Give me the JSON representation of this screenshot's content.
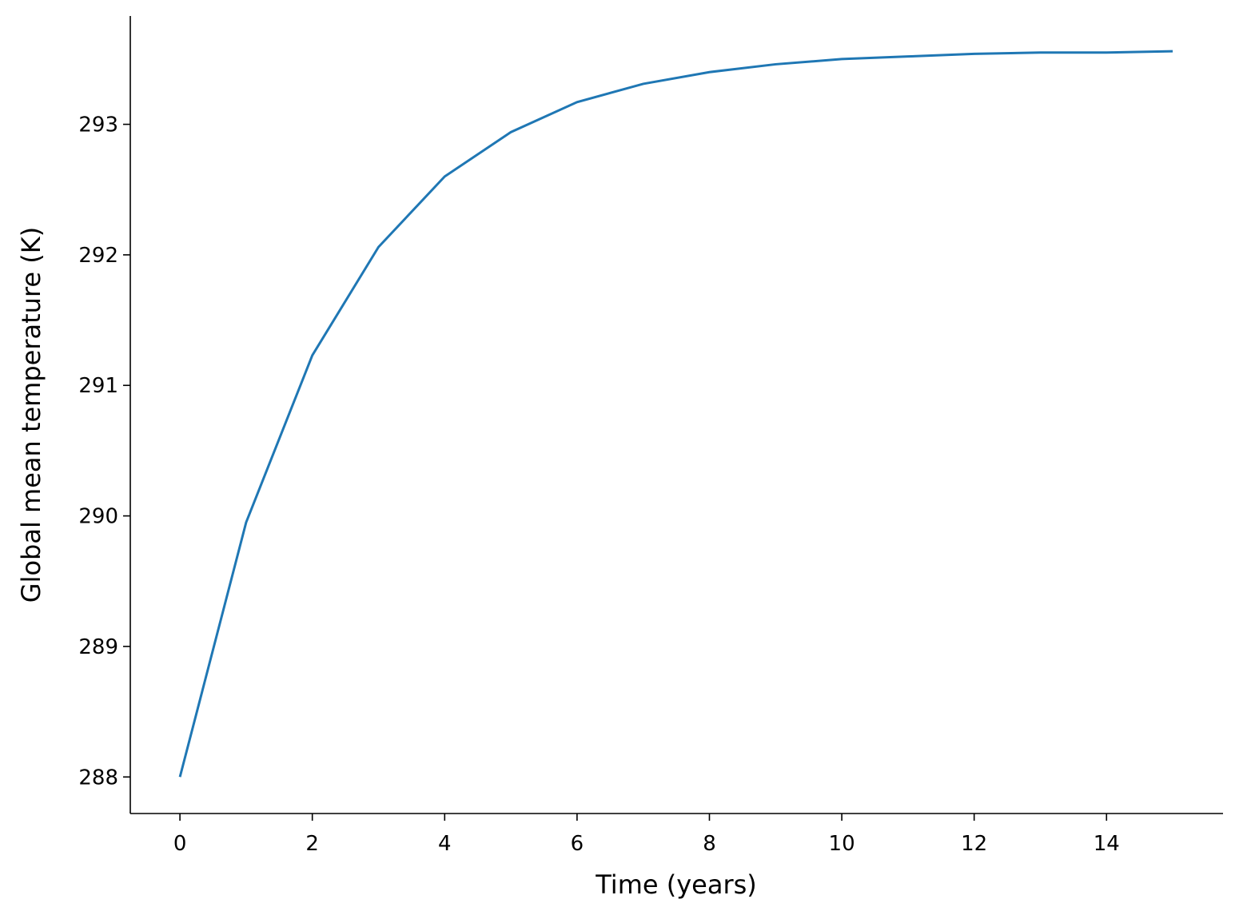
{
  "chart_data": {
    "type": "line",
    "xlabel": "Time (years)",
    "ylabel": "Global mean temperature (K)",
    "x": [
      0,
      1,
      2,
      3,
      4,
      5,
      6,
      7,
      8,
      9,
      10,
      11,
      12,
      13,
      14,
      15
    ],
    "series": [
      {
        "color": "#1f77b4",
        "values": [
          288.0,
          289.95,
          291.23,
          292.06,
          292.6,
          292.94,
          293.17,
          293.31,
          293.4,
          293.46,
          293.5,
          293.52,
          293.54,
          293.55,
          293.55,
          293.56
        ]
      }
    ],
    "xlim": [
      -0.75,
      15.76
    ],
    "ylim": [
      287.72,
      293.83
    ],
    "xticks": [
      0,
      2,
      4,
      6,
      8,
      10,
      12,
      14
    ],
    "yticks": [
      288,
      289,
      290,
      291,
      292,
      293
    ],
    "grid": false
  }
}
